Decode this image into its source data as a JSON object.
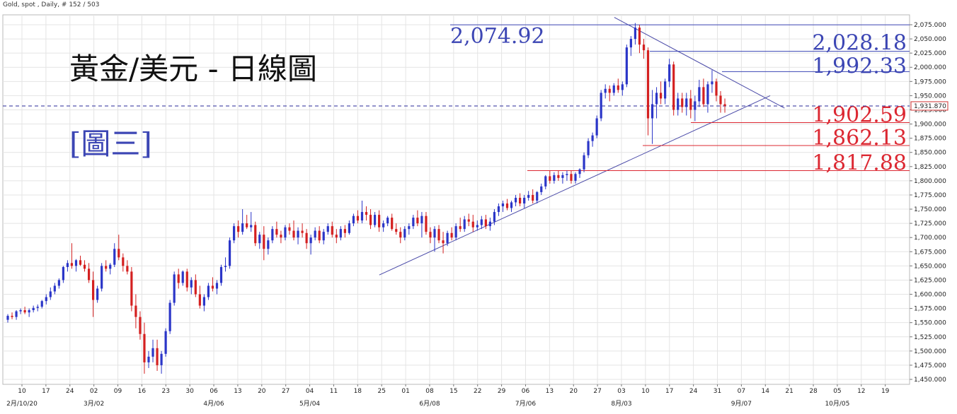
{
  "header": {
    "instrument": "Gold, spot , Daily, # 152 / 503"
  },
  "annotations": {
    "title": "黃金/美元 - 日線圖",
    "figure_label": "[圖三]"
  },
  "chart_data": {
    "type": "candlestick",
    "ylim": [
      1450,
      2085
    ],
    "y_ticks": [
      1450,
      1475,
      1500,
      1525,
      1550,
      1575,
      1600,
      1625,
      1650,
      1675,
      1700,
      1725,
      1750,
      1775,
      1800,
      1825,
      1850,
      1875,
      1900,
      1925,
      1950,
      1975,
      2000,
      2025,
      2050,
      2075
    ],
    "y_tick_labels": [
      "1,450.000",
      "1,475.000",
      "1,500.000",
      "1,525.000",
      "1,550.000",
      "1,575.000",
      "1,600.000",
      "1,625.000",
      "1,650.000",
      "1,675.000",
      "1,700.000",
      "1,725.000",
      "1,750.000",
      "1,775.000",
      "1,800.000",
      "1,825.000",
      "1,850.000",
      "1,875.000",
      "1,900.000",
      "1,925.000",
      "1,950.000",
      "1,975.000",
      "2,000.000",
      "2,025.000",
      "2,050.000",
      "2,075.000"
    ],
    "x_ticks_day": [
      "10",
      "17",
      "24",
      "02",
      "09",
      "16",
      "23",
      "30",
      "06",
      "13",
      "20",
      "27",
      "04",
      "11",
      "18",
      "25",
      "01",
      "08",
      "15",
      "22",
      "29",
      "06",
      "13",
      "20",
      "27",
      "03",
      "10",
      "17",
      "24",
      "31",
      "07",
      "14",
      "21",
      "28",
      "05",
      "12",
      "19"
    ],
    "x_ticks_month": [
      {
        "label": "2月/10/20",
        "index": 0
      },
      {
        "label": "3月/02",
        "index": 3
      },
      {
        "label": "4月/06",
        "index": 8
      },
      {
        "label": "5月/04",
        "index": 12
      },
      {
        "label": "6月/08",
        "index": 17
      },
      {
        "label": "7月/06",
        "index": 21
      },
      {
        "label": "8月/03",
        "index": 25
      },
      {
        "label": "9月/07",
        "index": 30
      },
      {
        "label": "10月/05",
        "index": 34
      }
    ],
    "current_price": 1931.87,
    "current_price_label": "1,931.870",
    "levels": [
      {
        "value": 2074.92,
        "label": "2,074.92",
        "color": "#3c46b4",
        "side": "resistance"
      },
      {
        "value": 2028.18,
        "label": "2,028.18",
        "color": "#3c46b4",
        "side": "resistance"
      },
      {
        "value": 1992.33,
        "label": "1,992.33",
        "color": "#3c46b4",
        "side": "resistance"
      },
      {
        "value": 1902.59,
        "label": "1,902.59",
        "color": "#dc2832",
        "side": "support"
      },
      {
        "value": 1862.13,
        "label": "1,862.13",
        "color": "#dc2832",
        "side": "support"
      },
      {
        "value": 1817.88,
        "label": "1,817.88",
        "color": "#dc2832",
        "side": "support"
      }
    ],
    "trendlines": [
      {
        "from": [
          14.9,
          1634
        ],
        "to": [
          31.2,
          1950
        ]
      },
      {
        "from": [
          24.7,
          2088
        ],
        "to": [
          31.8,
          1928
        ]
      }
    ],
    "candles": [
      [
        1555,
        1565,
        1550,
        1562
      ],
      [
        1562,
        1568,
        1556,
        1560
      ],
      [
        1560,
        1572,
        1555,
        1570
      ],
      [
        1570,
        1575,
        1565,
        1572
      ],
      [
        1572,
        1578,
        1565,
        1568
      ],
      [
        1568,
        1575,
        1560,
        1572
      ],
      [
        1572,
        1580,
        1568,
        1576
      ],
      [
        1576,
        1582,
        1570,
        1578
      ],
      [
        1578,
        1590,
        1575,
        1588
      ],
      [
        1588,
        1600,
        1582,
        1595
      ],
      [
        1595,
        1612,
        1590,
        1605
      ],
      [
        1605,
        1620,
        1600,
        1615
      ],
      [
        1615,
        1628,
        1610,
        1625
      ],
      [
        1625,
        1650,
        1620,
        1648
      ],
      [
        1648,
        1660,
        1640,
        1655
      ],
      [
        1655,
        1690,
        1645,
        1650
      ],
      [
        1650,
        1662,
        1640,
        1660
      ],
      [
        1660,
        1668,
        1650,
        1652
      ],
      [
        1652,
        1660,
        1640,
        1645
      ],
      [
        1645,
        1655,
        1620,
        1625
      ],
      [
        1625,
        1640,
        1560,
        1590
      ],
      [
        1590,
        1615,
        1585,
        1610
      ],
      [
        1610,
        1655,
        1605,
        1650
      ],
      [
        1650,
        1660,
        1640,
        1645
      ],
      [
        1645,
        1655,
        1635,
        1652
      ],
      [
        1652,
        1690,
        1648,
        1680
      ],
      [
        1680,
        1705,
        1660,
        1665
      ],
      [
        1665,
        1672,
        1640,
        1650
      ],
      [
        1650,
        1660,
        1635,
        1640
      ],
      [
        1640,
        1648,
        1570,
        1580
      ],
      [
        1580,
        1600,
        1540,
        1560
      ],
      [
        1560,
        1570,
        1520,
        1530
      ],
      [
        1530,
        1550,
        1460,
        1480
      ],
      [
        1480,
        1500,
        1470,
        1490
      ],
      [
        1490,
        1520,
        1480,
        1505
      ],
      [
        1505,
        1520,
        1465,
        1475
      ],
      [
        1475,
        1500,
        1460,
        1495
      ],
      [
        1495,
        1540,
        1490,
        1535
      ],
      [
        1535,
        1590,
        1530,
        1585
      ],
      [
        1585,
        1640,
        1580,
        1635
      ],
      [
        1635,
        1645,
        1610,
        1620
      ],
      [
        1620,
        1642,
        1615,
        1640
      ],
      [
        1640,
        1645,
        1605,
        1612
      ],
      [
        1612,
        1630,
        1600,
        1625
      ],
      [
        1625,
        1635,
        1595,
        1600
      ],
      [
        1600,
        1615,
        1575,
        1580
      ],
      [
        1580,
        1600,
        1570,
        1595
      ],
      [
        1595,
        1620,
        1590,
        1615
      ],
      [
        1615,
        1630,
        1605,
        1610
      ],
      [
        1610,
        1625,
        1600,
        1620
      ],
      [
        1620,
        1652,
        1615,
        1648
      ],
      [
        1648,
        1665,
        1640,
        1650
      ],
      [
        1650,
        1700,
        1645,
        1695
      ],
      [
        1695,
        1725,
        1690,
        1720
      ],
      [
        1720,
        1730,
        1700,
        1710
      ],
      [
        1710,
        1750,
        1705,
        1725
      ],
      [
        1725,
        1740,
        1715,
        1718
      ],
      [
        1718,
        1745,
        1710,
        1722
      ],
      [
        1722,
        1728,
        1685,
        1690
      ],
      [
        1690,
        1710,
        1680,
        1705
      ],
      [
        1705,
        1720,
        1660,
        1680
      ],
      [
        1680,
        1700,
        1670,
        1695
      ],
      [
        1695,
        1720,
        1690,
        1715
      ],
      [
        1715,
        1728,
        1700,
        1705
      ],
      [
        1705,
        1712,
        1690,
        1700
      ],
      [
        1700,
        1722,
        1695,
        1718
      ],
      [
        1718,
        1725,
        1705,
        1712
      ],
      [
        1712,
        1730,
        1695,
        1700
      ],
      [
        1700,
        1718,
        1688,
        1712
      ],
      [
        1712,
        1725,
        1700,
        1708
      ],
      [
        1708,
        1715,
        1680,
        1690
      ],
      [
        1690,
        1705,
        1670,
        1700
      ],
      [
        1700,
        1718,
        1695,
        1712
      ],
      [
        1712,
        1720,
        1690,
        1695
      ],
      [
        1695,
        1715,
        1688,
        1710
      ],
      [
        1710,
        1725,
        1705,
        1720
      ],
      [
        1720,
        1728,
        1700,
        1705
      ],
      [
        1705,
        1715,
        1690,
        1700
      ],
      [
        1700,
        1720,
        1695,
        1715
      ],
      [
        1715,
        1722,
        1700,
        1708
      ],
      [
        1708,
        1730,
        1705,
        1725
      ],
      [
        1725,
        1742,
        1720,
        1738
      ],
      [
        1738,
        1748,
        1725,
        1730
      ],
      [
        1730,
        1765,
        1725,
        1745
      ],
      [
        1745,
        1755,
        1730,
        1740
      ],
      [
        1740,
        1750,
        1715,
        1722
      ],
      [
        1722,
        1745,
        1718,
        1740
      ],
      [
        1740,
        1748,
        1710,
        1718
      ],
      [
        1718,
        1730,
        1710,
        1725
      ],
      [
        1725,
        1738,
        1720,
        1735
      ],
      [
        1735,
        1742,
        1712,
        1715
      ],
      [
        1715,
        1725,
        1705,
        1710
      ],
      [
        1710,
        1718,
        1690,
        1700
      ],
      [
        1700,
        1720,
        1695,
        1715
      ],
      [
        1715,
        1725,
        1705,
        1720
      ],
      [
        1720,
        1740,
        1715,
        1735
      ],
      [
        1735,
        1748,
        1720,
        1725
      ],
      [
        1725,
        1745,
        1700,
        1738
      ],
      [
        1738,
        1745,
        1705,
        1710
      ],
      [
        1710,
        1718,
        1690,
        1700
      ],
      [
        1700,
        1720,
        1675,
        1715
      ],
      [
        1715,
        1722,
        1690,
        1695
      ],
      [
        1695,
        1710,
        1672,
        1690
      ],
      [
        1690,
        1712,
        1685,
        1708
      ],
      [
        1708,
        1718,
        1695,
        1700
      ],
      [
        1700,
        1725,
        1695,
        1720
      ],
      [
        1720,
        1735,
        1710,
        1715
      ],
      [
        1715,
        1738,
        1710,
        1732
      ],
      [
        1732,
        1742,
        1720,
        1728
      ],
      [
        1728,
        1740,
        1710,
        1718
      ],
      [
        1718,
        1730,
        1712,
        1722
      ],
      [
        1722,
        1738,
        1715,
        1732
      ],
      [
        1732,
        1740,
        1715,
        1720
      ],
      [
        1720,
        1735,
        1712,
        1728
      ],
      [
        1728,
        1750,
        1722,
        1745
      ],
      [
        1745,
        1760,
        1738,
        1755
      ],
      [
        1755,
        1765,
        1745,
        1760
      ],
      [
        1760,
        1768,
        1748,
        1752
      ],
      [
        1752,
        1765,
        1745,
        1762
      ],
      [
        1762,
        1775,
        1755,
        1770
      ],
      [
        1770,
        1778,
        1755,
        1760
      ],
      [
        1760,
        1775,
        1752,
        1770
      ],
      [
        1770,
        1782,
        1765,
        1775
      ],
      [
        1775,
        1785,
        1760,
        1765
      ],
      [
        1765,
        1782,
        1760,
        1780
      ],
      [
        1780,
        1795,
        1775,
        1790
      ],
      [
        1790,
        1810,
        1785,
        1808
      ],
      [
        1808,
        1818,
        1795,
        1800
      ],
      [
        1800,
        1815,
        1795,
        1810
      ],
      [
        1810,
        1818,
        1800,
        1805
      ],
      [
        1805,
        1815,
        1795,
        1810
      ],
      [
        1810,
        1818,
        1800,
        1812
      ],
      [
        1812,
        1818,
        1795,
        1800
      ],
      [
        1800,
        1815,
        1795,
        1812
      ],
      [
        1812,
        1822,
        1805,
        1820
      ],
      [
        1820,
        1850,
        1815,
        1845
      ],
      [
        1845,
        1875,
        1840,
        1870
      ],
      [
        1870,
        1885,
        1860,
        1880
      ],
      [
        1880,
        1915,
        1875,
        1910
      ],
      [
        1910,
        1960,
        1905,
        1955
      ],
      [
        1955,
        1970,
        1945,
        1962
      ],
      [
        1962,
        1968,
        1940,
        1955
      ],
      [
        1955,
        1972,
        1950,
        1968
      ],
      [
        1968,
        1980,
        1955,
        1960
      ],
      [
        1960,
        1975,
        1950,
        1970
      ],
      [
        1970,
        2040,
        1965,
        2035
      ],
      [
        2035,
        2055,
        2020,
        2050
      ],
      [
        2050,
        2078,
        2040,
        2070
      ],
      [
        2070,
        2075,
        2025,
        2040
      ],
      [
        2040,
        2050,
        2015,
        2030
      ],
      [
        2030,
        2035,
        1880,
        1910
      ],
      [
        1910,
        1960,
        1865,
        1935
      ],
      [
        1935,
        1965,
        1910,
        1955
      ],
      [
        1955,
        1975,
        1935,
        1945
      ],
      [
        1945,
        1980,
        1935,
        1975
      ],
      [
        1975,
        2015,
        1965,
        2005
      ],
      [
        2005,
        2010,
        1915,
        1925
      ],
      [
        1925,
        1955,
        1915,
        1945
      ],
      [
        1945,
        1955,
        1920,
        1930
      ],
      [
        1930,
        1955,
        1915,
        1945
      ],
      [
        1945,
        1960,
        1910,
        1925
      ],
      [
        1925,
        1950,
        1905,
        1940
      ],
      [
        1940,
        1978,
        1930,
        1965
      ],
      [
        1965,
        1980,
        1930,
        1935
      ],
      [
        1935,
        1975,
        1920,
        1970
      ],
      [
        1970,
        1995,
        1955,
        1975
      ],
      [
        1975,
        1980,
        1940,
        1950
      ],
      [
        1950,
        1958,
        1920,
        1935
      ],
      [
        1935,
        1945,
        1920,
        1931.87
      ]
    ],
    "candle_colors": {
      "up": "#2b36c8",
      "down": "#d42020"
    }
  }
}
